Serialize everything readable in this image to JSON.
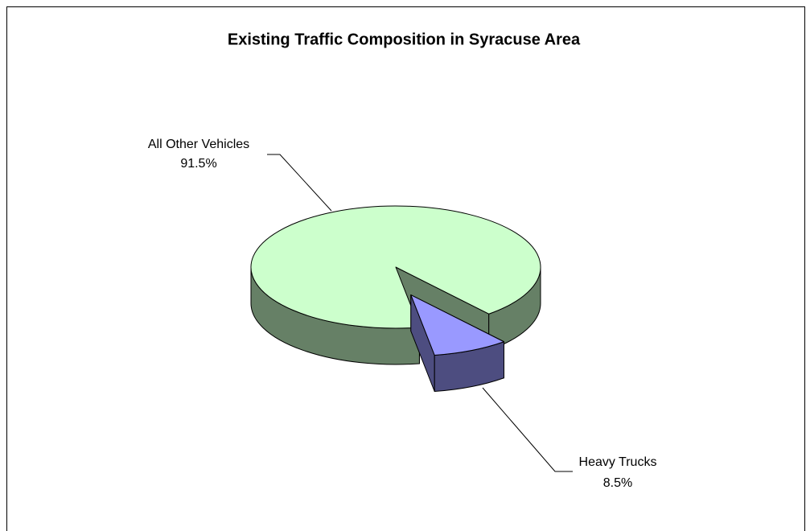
{
  "chart_data": {
    "type": "pie3d",
    "title": "Existing Traffic Composition in Syracuse Area",
    "categories": [
      "All Other Vehicles",
      "Heavy Trucks"
    ],
    "values": [
      91.5,
      8.5
    ],
    "value_labels": [
      "91.5%",
      "8.5%"
    ],
    "colors": [
      "#ccffcc",
      "#9999ff"
    ],
    "explode": [
      false,
      true
    ]
  }
}
